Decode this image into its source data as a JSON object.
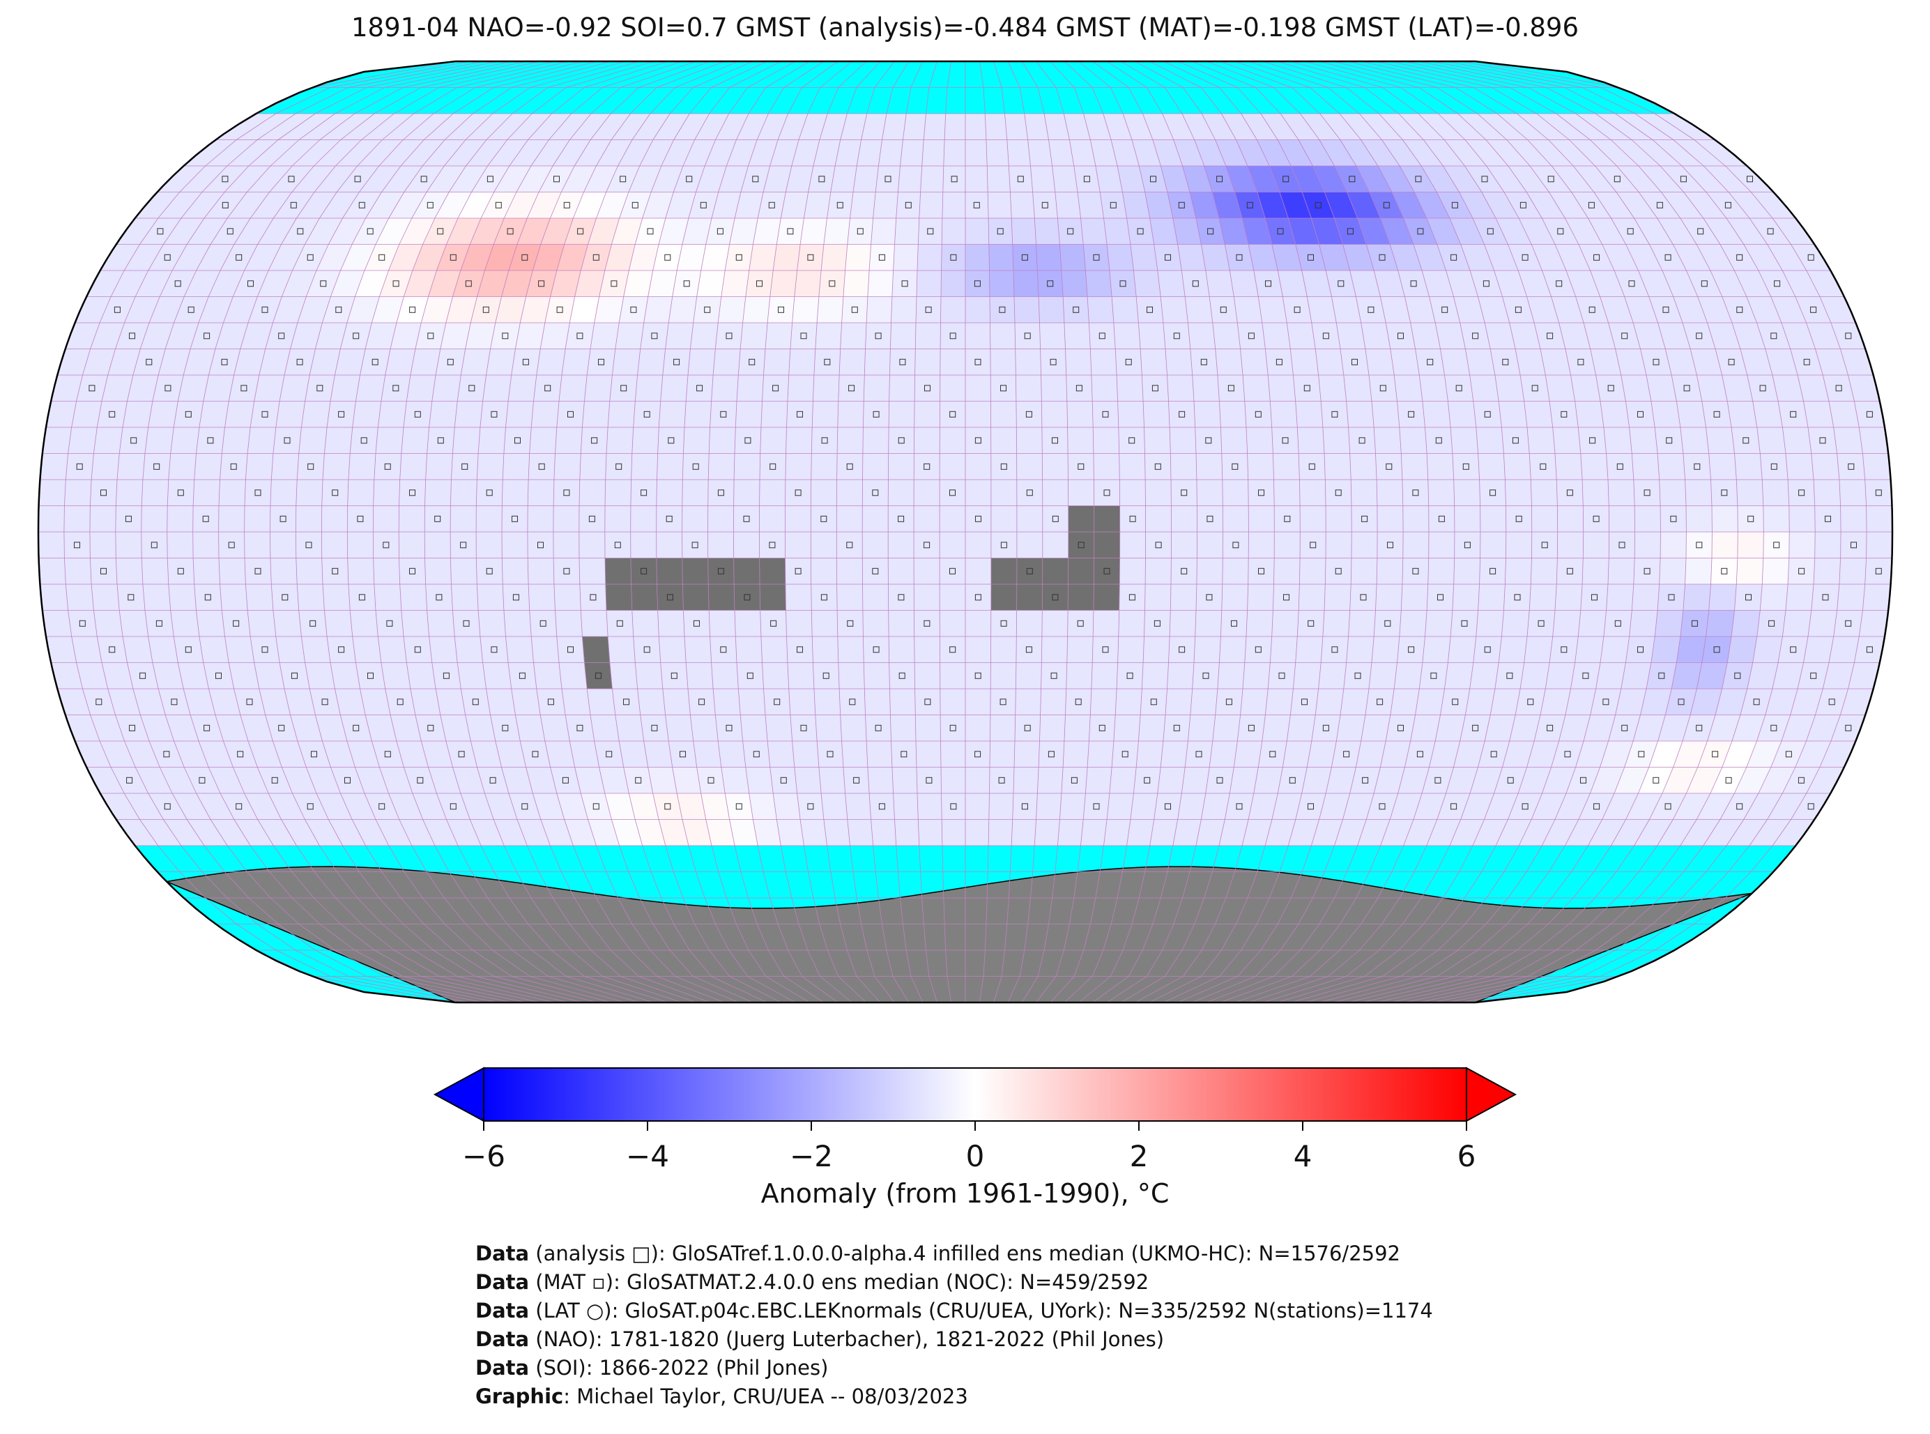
{
  "title": "1891-04 NAO=-0.92 SOI=0.7 GMST (analysis)=-0.484 GMST (MAT)=-0.198 GMST (LAT)=-0.896",
  "colorbar": {
    "label": "Anomaly (from 1961-1990), °C",
    "ticks": [
      "−6",
      "−4",
      "−2",
      "0",
      "2",
      "4",
      "6"
    ],
    "tick_values": [
      -6,
      -4,
      -2,
      0,
      2,
      4,
      6
    ],
    "min": -6,
    "max": 6,
    "colors": {
      "low": "#0000ff",
      "mid": "#ffffff",
      "high": "#ff0000"
    }
  },
  "map": {
    "projection": "Robinson",
    "grid": "5x5 degree",
    "ocean_no_data_color": "#00ffff",
    "land_no_data_color": "#808080",
    "grid_line_color": "#c080c0",
    "symbols": [
      "analysis square",
      "MAT square",
      "LAT circle"
    ]
  },
  "credits": [
    {
      "bold": "Data",
      "text": " (analysis □): GloSATref.1.0.0.0-alpha.4 infilled ens median (UKMO-HC): N=1576/2592"
    },
    {
      "bold": "Data",
      "text": " (MAT ▫): GloSATMAT.2.4.0.0 ens median (NOC): N=459/2592"
    },
    {
      "bold": "Data",
      "text": " (LAT ○): GloSAT.p04c.EBC.LEKnormals (CRU/UEA, UYork): N=335/2592 N(stations)=1174"
    },
    {
      "bold": "Data",
      "text": " (NAO): 1781-1820 (Juerg Luterbacher), 1821-2022 (Phil Jones)"
    },
    {
      "bold": "Data",
      "text": " (SOI): 1866-2022 (Phil Jones)"
    },
    {
      "bold": "Graphic",
      "text": ": Michael Taylor, CRU/UEA -- 08/03/2023"
    }
  ]
}
